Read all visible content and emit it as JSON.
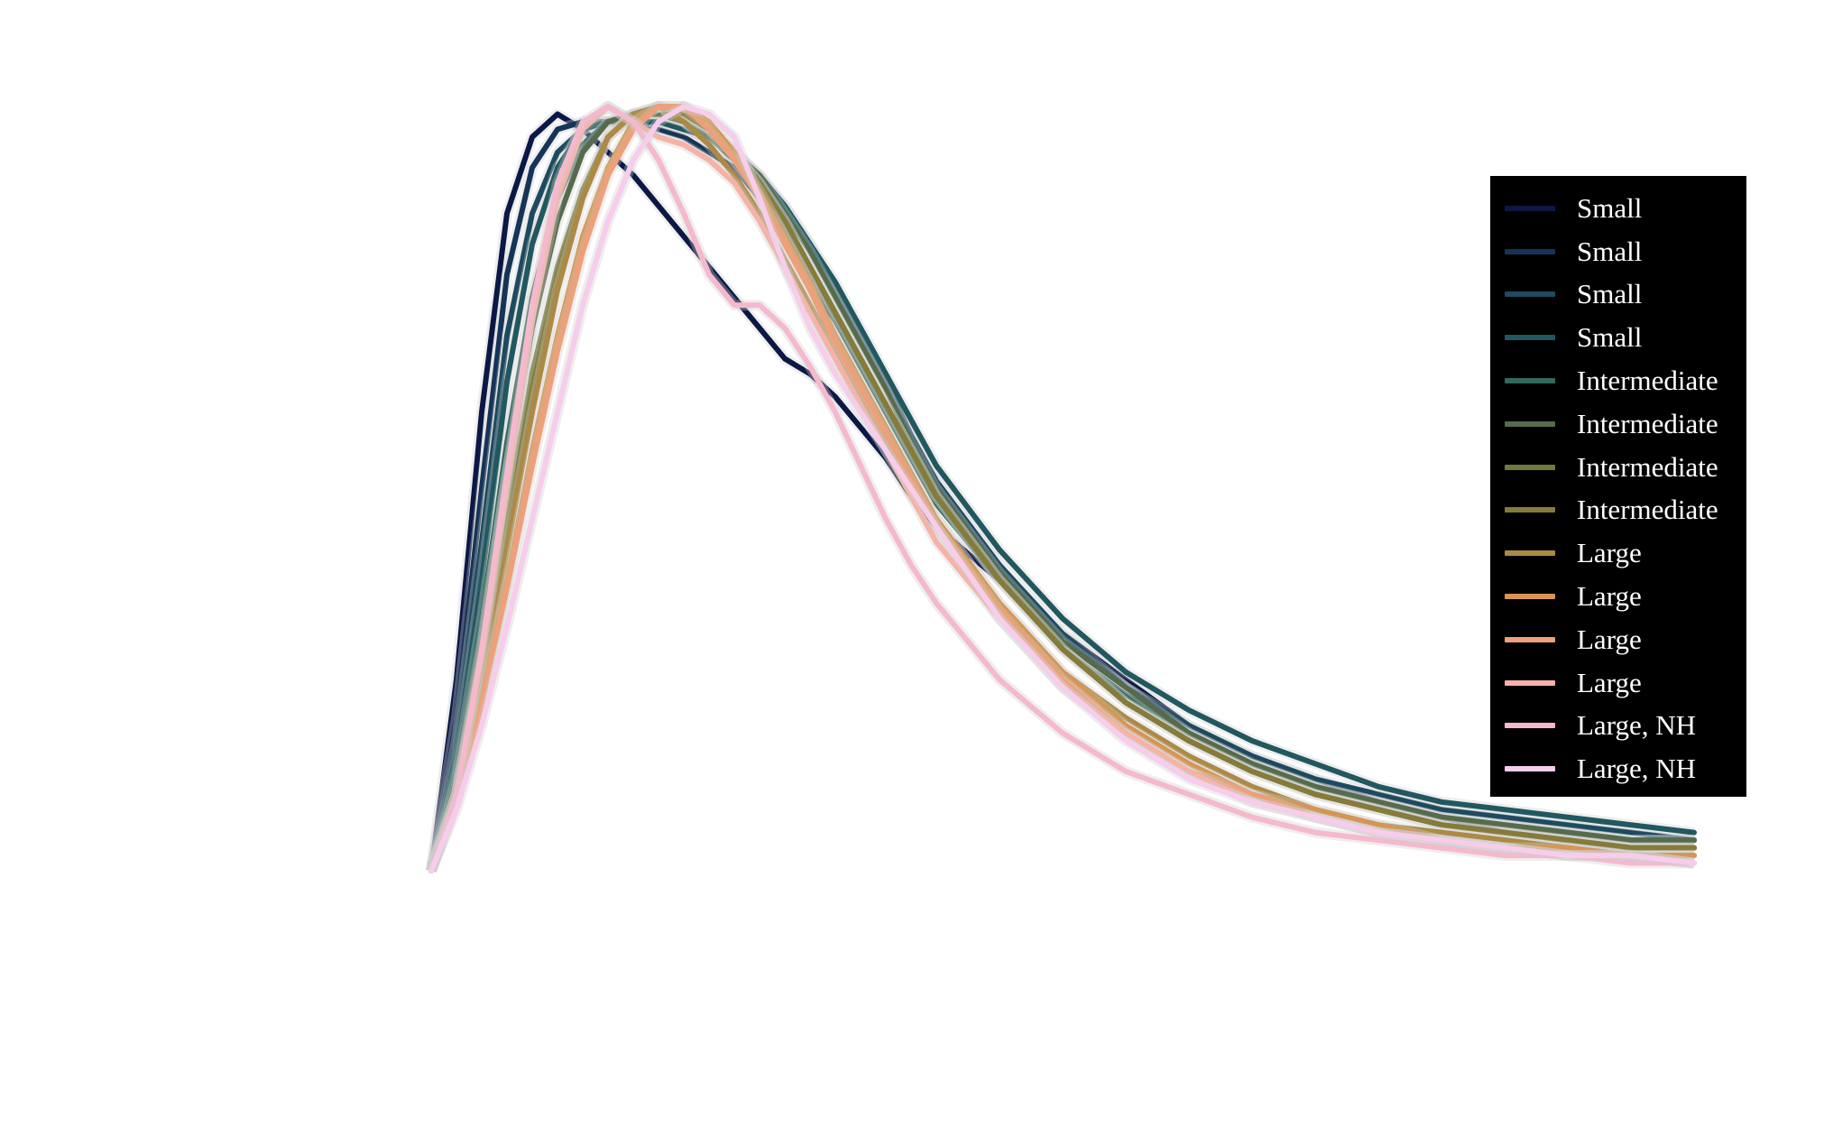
{
  "chart_data": {
    "type": "line",
    "title": "",
    "xlabel": "",
    "ylabel": "",
    "xlim": [
      0,
      100
    ],
    "ylim": [
      0,
      1
    ],
    "grid": false,
    "legend_position": "right",
    "legend_background": "#000000",
    "x": [
      0,
      2,
      4,
      6,
      8,
      10,
      12,
      14,
      16,
      18,
      20,
      22,
      24,
      26,
      28,
      30,
      32,
      34,
      36,
      38,
      40,
      45,
      50,
      55,
      60,
      65,
      70,
      75,
      80,
      85,
      90,
      95,
      100
    ],
    "series": [
      {
        "name": "Small",
        "color": "#0b1845",
        "values": [
          0.0,
          0.25,
          0.6,
          0.86,
          0.96,
          0.99,
          0.97,
          0.94,
          0.91,
          0.87,
          0.83,
          0.79,
          0.75,
          0.71,
          0.67,
          0.65,
          0.62,
          0.58,
          0.54,
          0.49,
          0.45,
          0.38,
          0.31,
          0.25,
          0.19,
          0.15,
          0.12,
          0.09,
          0.07,
          0.05,
          0.04,
          0.03,
          0.03
        ]
      },
      {
        "name": "Small",
        "color": "#163457",
        "values": [
          0.0,
          0.2,
          0.5,
          0.78,
          0.92,
          0.97,
          0.98,
          0.98,
          0.98,
          0.97,
          0.96,
          0.94,
          0.92,
          0.88,
          0.83,
          0.77,
          0.72,
          0.66,
          0.6,
          0.54,
          0.49,
          0.39,
          0.3,
          0.24,
          0.18,
          0.14,
          0.11,
          0.09,
          0.07,
          0.06,
          0.05,
          0.04,
          0.04
        ]
      },
      {
        "name": "Small",
        "color": "#1d4a5f",
        "values": [
          0.0,
          0.17,
          0.43,
          0.7,
          0.86,
          0.94,
          0.97,
          0.98,
          0.98,
          0.98,
          0.97,
          0.96,
          0.94,
          0.91,
          0.87,
          0.82,
          0.76,
          0.7,
          0.64,
          0.57,
          0.51,
          0.4,
          0.31,
          0.24,
          0.19,
          0.15,
          0.12,
          0.1,
          0.08,
          0.07,
          0.06,
          0.05,
          0.04
        ]
      },
      {
        "name": "Small",
        "color": "#21585f",
        "values": [
          0.0,
          0.15,
          0.38,
          0.64,
          0.82,
          0.92,
          0.97,
          0.98,
          0.98,
          0.98,
          0.97,
          0.96,
          0.94,
          0.91,
          0.87,
          0.82,
          0.77,
          0.71,
          0.65,
          0.59,
          0.53,
          0.42,
          0.33,
          0.26,
          0.21,
          0.17,
          0.14,
          0.11,
          0.09,
          0.08,
          0.07,
          0.06,
          0.05
        ]
      },
      {
        "name": "Intermediate",
        "color": "#33685b",
        "values": [
          0.0,
          0.13,
          0.33,
          0.56,
          0.75,
          0.88,
          0.95,
          0.98,
          0.99,
          0.99,
          0.98,
          0.96,
          0.93,
          0.89,
          0.84,
          0.78,
          0.72,
          0.66,
          0.6,
          0.54,
          0.48,
          0.38,
          0.29,
          0.23,
          0.18,
          0.14,
          0.11,
          0.09,
          0.07,
          0.06,
          0.05,
          0.04,
          0.04
        ]
      },
      {
        "name": "Intermediate",
        "color": "#566b4c",
        "values": [
          0.0,
          0.12,
          0.3,
          0.52,
          0.71,
          0.85,
          0.94,
          0.98,
          0.99,
          0.99,
          0.98,
          0.96,
          0.94,
          0.91,
          0.86,
          0.81,
          0.75,
          0.69,
          0.63,
          0.56,
          0.5,
          0.39,
          0.3,
          0.24,
          0.18,
          0.14,
          0.11,
          0.09,
          0.07,
          0.06,
          0.05,
          0.04,
          0.04
        ]
      },
      {
        "name": "Intermediate",
        "color": "#6e7a3c",
        "values": [
          0.0,
          0.11,
          0.27,
          0.47,
          0.65,
          0.79,
          0.89,
          0.96,
          0.99,
          1.0,
          0.99,
          0.97,
          0.94,
          0.9,
          0.85,
          0.79,
          0.73,
          0.67,
          0.61,
          0.55,
          0.49,
          0.38,
          0.29,
          0.22,
          0.17,
          0.13,
          0.1,
          0.08,
          0.06,
          0.05,
          0.04,
          0.03,
          0.03
        ]
      },
      {
        "name": "Intermediate",
        "color": "#857b3a",
        "values": [
          0.0,
          0.1,
          0.26,
          0.45,
          0.63,
          0.78,
          0.89,
          0.96,
          0.99,
          1.0,
          0.99,
          0.97,
          0.94,
          0.9,
          0.85,
          0.79,
          0.73,
          0.67,
          0.61,
          0.55,
          0.49,
          0.38,
          0.29,
          0.22,
          0.17,
          0.13,
          0.1,
          0.08,
          0.06,
          0.05,
          0.04,
          0.03,
          0.03
        ]
      },
      {
        "name": "Large",
        "color": "#ac8a45",
        "values": [
          0.0,
          0.1,
          0.24,
          0.42,
          0.6,
          0.76,
          0.88,
          0.96,
          0.99,
          1.0,
          0.98,
          0.95,
          0.91,
          0.86,
          0.8,
          0.74,
          0.68,
          0.62,
          0.56,
          0.51,
          0.46,
          0.35,
          0.26,
          0.2,
          0.15,
          0.11,
          0.08,
          0.06,
          0.05,
          0.04,
          0.03,
          0.02,
          0.02
        ]
      },
      {
        "name": "Large",
        "color": "#d79553",
        "values": [
          0.0,
          0.09,
          0.22,
          0.38,
          0.55,
          0.7,
          0.83,
          0.92,
          0.98,
          1.0,
          1.0,
          0.98,
          0.94,
          0.89,
          0.83,
          0.77,
          0.7,
          0.64,
          0.58,
          0.52,
          0.46,
          0.35,
          0.26,
          0.19,
          0.14,
          0.1,
          0.08,
          0.06,
          0.04,
          0.03,
          0.03,
          0.02,
          0.02
        ]
      },
      {
        "name": "Large",
        "color": "#eda079",
        "values": [
          0.0,
          0.09,
          0.22,
          0.37,
          0.53,
          0.68,
          0.81,
          0.91,
          0.97,
          1.0,
          1.0,
          0.97,
          0.93,
          0.88,
          0.82,
          0.76,
          0.69,
          0.63,
          0.57,
          0.51,
          0.45,
          0.34,
          0.25,
          0.18,
          0.13,
          0.1,
          0.07,
          0.05,
          0.04,
          0.03,
          0.02,
          0.02,
          0.01
        ]
      },
      {
        "name": "Large",
        "color": "#f6b2a6",
        "values": [
          0.0,
          0.1,
          0.28,
          0.5,
          0.72,
          0.88,
          0.97,
          1.0,
          0.98,
          0.96,
          0.95,
          0.93,
          0.9,
          0.85,
          0.79,
          0.73,
          0.67,
          0.61,
          0.55,
          0.49,
          0.43,
          0.33,
          0.24,
          0.18,
          0.13,
          0.09,
          0.07,
          0.05,
          0.04,
          0.03,
          0.02,
          0.02,
          0.01
        ]
      },
      {
        "name": "Large, NH",
        "color": "#f5b9cd",
        "values": [
          0.0,
          0.1,
          0.29,
          0.52,
          0.74,
          0.9,
          0.98,
          1.0,
          0.98,
          0.93,
          0.86,
          0.78,
          0.74,
          0.74,
          0.71,
          0.66,
          0.6,
          0.53,
          0.46,
          0.4,
          0.35,
          0.25,
          0.18,
          0.13,
          0.1,
          0.07,
          0.05,
          0.04,
          0.03,
          0.02,
          0.02,
          0.01,
          0.01
        ]
      },
      {
        "name": "Large, NH",
        "color": "#f6cdea",
        "values": [
          0.0,
          0.08,
          0.19,
          0.32,
          0.46,
          0.6,
          0.74,
          0.85,
          0.93,
          0.98,
          1.0,
          0.99,
          0.96,
          0.88,
          0.79,
          0.71,
          0.65,
          0.6,
          0.55,
          0.5,
          0.45,
          0.33,
          0.24,
          0.17,
          0.12,
          0.09,
          0.07,
          0.05,
          0.04,
          0.03,
          0.02,
          0.02,
          0.01
        ]
      }
    ]
  }
}
